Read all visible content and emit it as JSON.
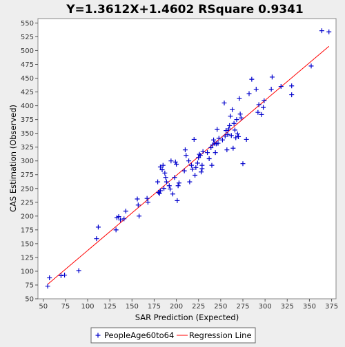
{
  "chart_data": {
    "type": "scatter",
    "title": "Y=1.3612X+1.4602    RSquare 0.9341",
    "xlabel": "SAR Prediction (Expected)",
    "ylabel": "CAS Estimation (Observed)",
    "xlim": [
      44,
      380
    ],
    "ylim": [
      50,
      558
    ],
    "xticks": [
      50,
      75,
      100,
      125,
      150,
      175,
      200,
      225,
      250,
      275,
      300,
      325,
      350,
      375
    ],
    "yticks": [
      50,
      75,
      100,
      125,
      150,
      175,
      200,
      225,
      250,
      275,
      300,
      325,
      350,
      375,
      400,
      425,
      450,
      475,
      500,
      525,
      550
    ],
    "grid": false,
    "legend_position": "bottom",
    "series": [
      {
        "name": "PeopleAge60to64",
        "marker": "plus",
        "color": "#0000cc",
        "points": [
          [
            55,
            73
          ],
          [
            57,
            88
          ],
          [
            70,
            92
          ],
          [
            74,
            93
          ],
          [
            90,
            101
          ],
          [
            110,
            159
          ],
          [
            112,
            180
          ],
          [
            132,
            175
          ],
          [
            133,
            197
          ],
          [
            135,
            199
          ],
          [
            137,
            193
          ],
          [
            141,
            195
          ],
          [
            143,
            209
          ],
          [
            156,
            231
          ],
          [
            157,
            220
          ],
          [
            158,
            200
          ],
          [
            167,
            232
          ],
          [
            168,
            225
          ],
          [
            179,
            262
          ],
          [
            180,
            243
          ],
          [
            181,
            241
          ],
          [
            182,
            246
          ],
          [
            182,
            289
          ],
          [
            184,
            284
          ],
          [
            185,
            292
          ],
          [
            186,
            250
          ],
          [
            187,
            278
          ],
          [
            188,
            270
          ],
          [
            189,
            262
          ],
          [
            192,
            255
          ],
          [
            193,
            249
          ],
          [
            194,
            300
          ],
          [
            196,
            240
          ],
          [
            198,
            270
          ],
          [
            199,
            298
          ],
          [
            200,
            294
          ],
          [
            201,
            228
          ],
          [
            202,
            255
          ],
          [
            203,
            260
          ],
          [
            209,
            282
          ],
          [
            210,
            320
          ],
          [
            211,
            310
          ],
          [
            214,
            300
          ],
          [
            215,
            262
          ],
          [
            217,
            292
          ],
          [
            218,
            285
          ],
          [
            220,
            339
          ],
          [
            221,
            274
          ],
          [
            222,
            288
          ],
          [
            224,
            296
          ],
          [
            225,
            306
          ],
          [
            226,
            312
          ],
          [
            227,
            310
          ],
          [
            228,
            280
          ],
          [
            229,
            292
          ],
          [
            229,
            286
          ],
          [
            230,
            317
          ],
          [
            235,
            315
          ],
          [
            237,
            304
          ],
          [
            239,
            324
          ],
          [
            240,
            292
          ],
          [
            241,
            329
          ],
          [
            242,
            338
          ],
          [
            243,
            332
          ],
          [
            244,
            315
          ],
          [
            245,
            331
          ],
          [
            246,
            357
          ],
          [
            247,
            332
          ],
          [
            248,
            341
          ],
          [
            252,
            338
          ],
          [
            254,
            405
          ],
          [
            255,
            345
          ],
          [
            256,
            355
          ],
          [
            257,
            320
          ],
          [
            258,
            348
          ],
          [
            259,
            358
          ],
          [
            260,
            364
          ],
          [
            261,
            381
          ],
          [
            262,
            346
          ],
          [
            263,
            393
          ],
          [
            264,
            323
          ],
          [
            265,
            368
          ],
          [
            266,
            356
          ],
          [
            267,
            342
          ],
          [
            268,
            375
          ],
          [
            269,
            349
          ],
          [
            270,
            344
          ],
          [
            271,
            413
          ],
          [
            272,
            385
          ],
          [
            273,
            378
          ],
          [
            275,
            295
          ],
          [
            279,
            339
          ],
          [
            282,
            422
          ],
          [
            285,
            448
          ],
          [
            290,
            430
          ],
          [
            292,
            388
          ],
          [
            293,
            402
          ],
          [
            296,
            384
          ],
          [
            298,
            397
          ],
          [
            299,
            409
          ],
          [
            307,
            430
          ],
          [
            308,
            452
          ],
          [
            318,
            435
          ],
          [
            330,
            436
          ],
          [
            330,
            420
          ],
          [
            352,
            472
          ],
          [
            364,
            536
          ],
          [
            372,
            534
          ]
        ]
      }
    ],
    "regression": {
      "name": "Regression Line",
      "color": "#ff0000",
      "x_range": [
        55,
        372
      ],
      "slope": 1.3612,
      "intercept": 1.4602
    }
  }
}
